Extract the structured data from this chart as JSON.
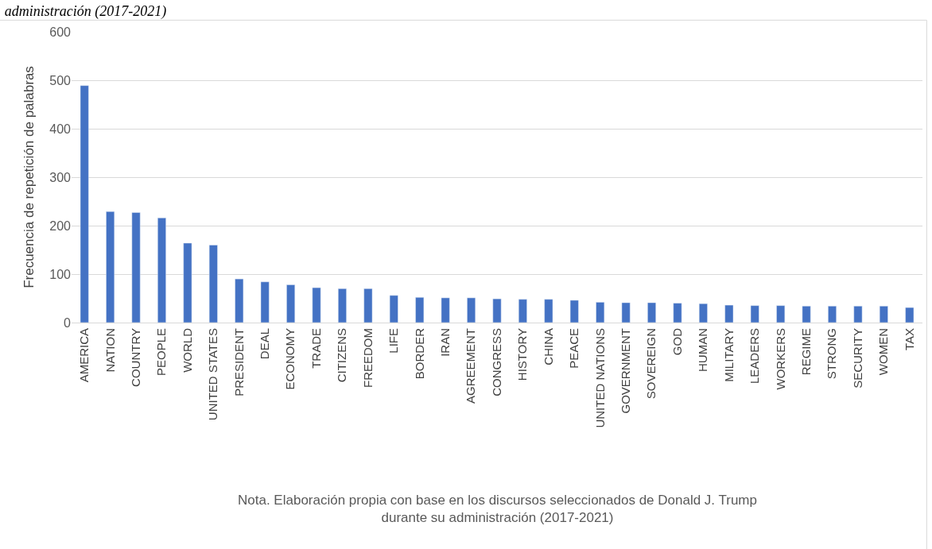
{
  "chart_data": {
    "type": "bar",
    "title": "administración (2017-2021)",
    "ylabel": "Frecuencia de repetición de palabras",
    "categories": [
      "AMERICA",
      "NATION",
      "COUNTRY",
      "PEOPLE",
      "WORLD",
      "UNITED STATES",
      "PRESIDENT",
      "DEAL",
      "ECONOMY",
      "TRADE",
      "CITIZENS",
      "FREEDOM",
      "LIFE",
      "BORDER",
      "IRAN",
      "AGREEMENT",
      "CONGRESS",
      "HISTORY",
      "CHINA",
      "PEACE",
      "UNITED NATIONS",
      "GOVERNMENT",
      "SOVEREIGN",
      "GOD",
      "HUMAN",
      "MILITARY",
      "LEADERS",
      "WORKERS",
      "REGIME",
      "STRONG",
      "SECURITY",
      "WOMEN",
      "TAX"
    ],
    "values": [
      489,
      229,
      227,
      216,
      164,
      160,
      90,
      84,
      78,
      72,
      70,
      70,
      56,
      52,
      51,
      51,
      49,
      48,
      48,
      46,
      42,
      41,
      41,
      40,
      39,
      36,
      35,
      35,
      34,
      34,
      34,
      34,
      31
    ],
    "color": "#4472c4",
    "ylim": [
      0,
      600
    ],
    "yticks": [
      0,
      100,
      200,
      300,
      400,
      500,
      600
    ],
    "grid": "y",
    "annotations": [
      "Nota. Elaboración propia con base en los discursos seleccionados de Donald J. Trump\ndurante su administración (2017-2021)"
    ]
  }
}
